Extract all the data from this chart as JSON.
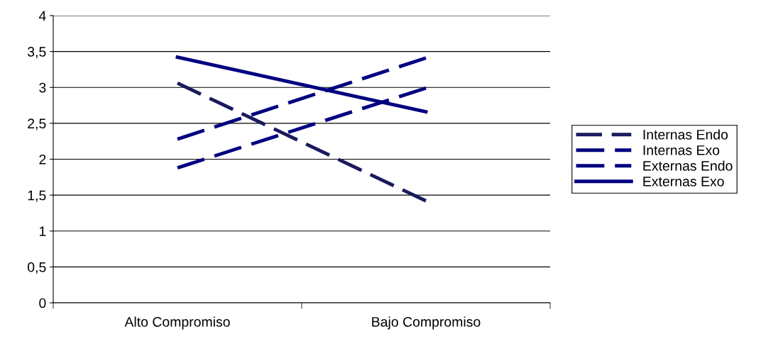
{
  "chart_data": {
    "type": "line",
    "categories": [
      "Alto Compromiso",
      "Bajo Compromiso"
    ],
    "series": [
      {
        "name": "Internas Endo",
        "color": "#1a1a5e",
        "values": [
          3.06,
          1.42
        ],
        "line_style": "dashed"
      },
      {
        "name": "Internas Exo",
        "color": "#000080",
        "values": [
          1.88,
          2.99
        ],
        "line_style": "dotted"
      },
      {
        "name": "Externas Endo",
        "color": "#000080",
        "values": [
          2.28,
          3.41
        ],
        "line_style": "dashed"
      },
      {
        "name": "Externas Exo",
        "color": "#000080",
        "values": [
          3.42,
          2.66
        ],
        "line_style": "solid"
      }
    ],
    "ylim": [
      0,
      4
    ],
    "yticks": [
      {
        "value": 0,
        "label": "0"
      },
      {
        "value": 0.5,
        "label": "0,5"
      },
      {
        "value": 1,
        "label": "1"
      },
      {
        "value": 1.5,
        "label": "1,5"
      },
      {
        "value": 2,
        "label": "2"
      },
      {
        "value": 2.5,
        "label": "2,5"
      },
      {
        "value": 3,
        "label": "3"
      },
      {
        "value": 3.5,
        "label": "3,5"
      },
      {
        "value": 4,
        "label": "4"
      }
    ],
    "grid": "y",
    "legend": "right",
    "marker": "none"
  }
}
